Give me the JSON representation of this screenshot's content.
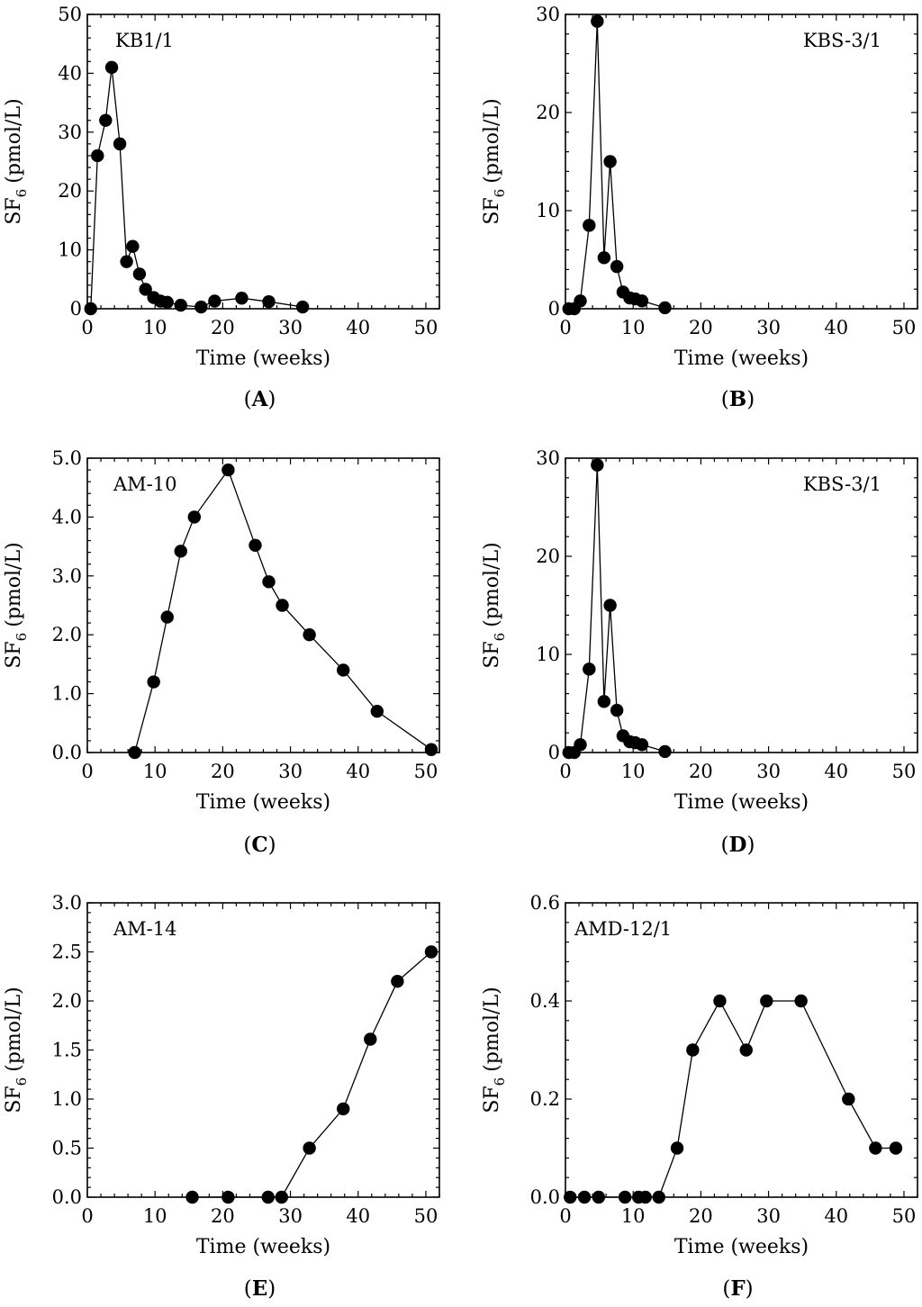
{
  "chart_data": [
    {
      "type": "line",
      "panel_label": "A",
      "title": "KB1/1",
      "xlabel": "Time (weeks)",
      "ylabel_main": "SF",
      "ylabel_sub": "6",
      "ylabel_unit": "(pmol/L)",
      "xlim": [
        0,
        52
      ],
      "ylim": [
        0,
        50
      ],
      "xticks": [
        0,
        10,
        20,
        30,
        40,
        50
      ],
      "yticks": [
        0,
        10,
        20,
        30,
        40,
        50
      ],
      "ytick_labels": [
        "0",
        "10",
        "20",
        "30",
        "40",
        "50"
      ],
      "series": [
        {
          "name": "KB1/1",
          "x": [
            0.5,
            1.5,
            2.7,
            3.6,
            4.8,
            5.8,
            6.7,
            7.7,
            8.6,
            9.8,
            10.8,
            11.8,
            13.8,
            16.8,
            18.8,
            22.8,
            26.8,
            31.8
          ],
          "y": [
            0,
            26,
            32,
            41,
            28,
            8,
            10.6,
            5.9,
            3.3,
            1.9,
            1.3,
            1.1,
            0.6,
            0.3,
            1.3,
            1.8,
            1.2,
            0.3
          ]
        }
      ]
    },
    {
      "type": "line",
      "panel_label": "B",
      "title": "KBS-3/1",
      "xlabel": "Time (weeks)",
      "ylabel_main": "SF",
      "ylabel_sub": "6",
      "ylabel_unit": "(pmol/L)",
      "xlim": [
        0,
        52
      ],
      "ylim": [
        0,
        30
      ],
      "xticks": [
        0,
        10,
        20,
        30,
        40,
        50
      ],
      "yticks": [
        0,
        10,
        20,
        30
      ],
      "ytick_labels": [
        "0",
        "10",
        "20",
        "30"
      ],
      "series": [
        {
          "name": "KBS-3/1",
          "x": [
            0.5,
            1.3,
            2.2,
            3.5,
            4.7,
            5.7,
            6.6,
            7.6,
            8.5,
            9.5,
            10.3,
            11.3,
            14.7
          ],
          "y": [
            0,
            0,
            0.8,
            8.5,
            29.3,
            5.2,
            15,
            4.3,
            1.7,
            1.1,
            1,
            0.8,
            0.1
          ]
        }
      ]
    },
    {
      "type": "line",
      "panel_label": "C",
      "title": "AM-10",
      "xlabel": "Time (weeks)",
      "ylabel_main": "SF",
      "ylabel_sub": "6",
      "ylabel_unit": "(pmol/L)",
      "xlim": [
        0,
        52
      ],
      "ylim": [
        0,
        5
      ],
      "xticks": [
        0,
        10,
        20,
        30,
        40,
        50
      ],
      "yticks": [
        0,
        1,
        2,
        3,
        4,
        5
      ],
      "ytick_labels": [
        "0.0",
        "1.0",
        "2.0",
        "3.0",
        "4.0",
        "5.0"
      ],
      "series": [
        {
          "name": "AM-10",
          "x": [
            7,
            9.8,
            11.8,
            13.8,
            15.8,
            20.8,
            24.8,
            26.8,
            28.8,
            32.8,
            37.8,
            42.8,
            50.8
          ],
          "y": [
            0,
            1.2,
            2.3,
            3.42,
            4,
            4.8,
            3.52,
            2.9,
            2.5,
            2,
            1.4,
            0.7,
            0.05
          ]
        }
      ]
    },
    {
      "type": "line",
      "panel_label": "D",
      "title": "KBS-3/1",
      "xlabel": "Time (weeks)",
      "ylabel_main": "SF",
      "ylabel_sub": "6",
      "ylabel_unit": "(pmol/L)",
      "xlim": [
        0,
        52
      ],
      "ylim": [
        0,
        30
      ],
      "xticks": [
        0,
        10,
        20,
        30,
        40,
        50
      ],
      "yticks": [
        0,
        10,
        20,
        30
      ],
      "ytick_labels": [
        "0",
        "10",
        "20",
        "30"
      ],
      "series": [
        {
          "name": "KBS-3/1",
          "x": [
            0.5,
            1.3,
            2.2,
            3.5,
            4.7,
            5.7,
            6.6,
            7.6,
            8.5,
            9.5,
            10.3,
            11.3,
            14.7
          ],
          "y": [
            0,
            0,
            0.8,
            8.5,
            29.3,
            5.2,
            15,
            4.3,
            1.7,
            1.1,
            1,
            0.8,
            0.1
          ]
        }
      ]
    },
    {
      "type": "line",
      "panel_label": "E",
      "title": "AM-14",
      "xlabel": "Time (weeks)",
      "ylabel_main": "SF",
      "ylabel_sub": "6",
      "ylabel_unit": "(pmol/L)",
      "xlim": [
        0,
        52
      ],
      "ylim": [
        0,
        3
      ],
      "xticks": [
        0,
        10,
        20,
        30,
        40,
        50
      ],
      "yticks": [
        0,
        0.5,
        1,
        1.5,
        2,
        2.5,
        3
      ],
      "ytick_labels": [
        "0.0",
        "0.5",
        "1.0",
        "1.5",
        "2.0",
        "2.5",
        "3.0"
      ],
      "series": [
        {
          "name": "AM-14",
          "x": [
            15.5,
            20.8,
            26.7,
            28.7,
            32.8,
            37.8,
            41.8,
            45.8,
            50.8
          ],
          "y": [
            0,
            0,
            0,
            0,
            0.5,
            0.9,
            1.61,
            2.2,
            2.5
          ]
        }
      ]
    },
    {
      "type": "line",
      "panel_label": "F",
      "title": "AMD-12/1",
      "xlabel": "Time (weeks)",
      "ylabel_main": "SF",
      "ylabel_sub": "6",
      "ylabel_unit": "(pmol/L)",
      "xlim": [
        0,
        52
      ],
      "ylim": [
        0,
        0.6
      ],
      "xticks": [
        0,
        10,
        20,
        30,
        40,
        50
      ],
      "yticks": [
        0,
        0.2,
        0.4,
        0.6
      ],
      "ytick_labels": [
        "0.0",
        "0.2",
        "0.4",
        "0.6"
      ],
      "series": [
        {
          "name": "AMD-12/1",
          "x": [
            0.7,
            2.8,
            4.9,
            8.8,
            10.8,
            11.8,
            13.8,
            16.5,
            18.8,
            22.8,
            26.7,
            29.7,
            34.8,
            41.8,
            45.8,
            48.8
          ],
          "y": [
            0,
            0,
            0,
            0,
            0,
            0,
            0,
            0.1,
            0.3,
            0.4,
            0.3,
            0.4,
            0.4,
            0.2,
            0.1,
            0.1
          ]
        }
      ]
    }
  ]
}
